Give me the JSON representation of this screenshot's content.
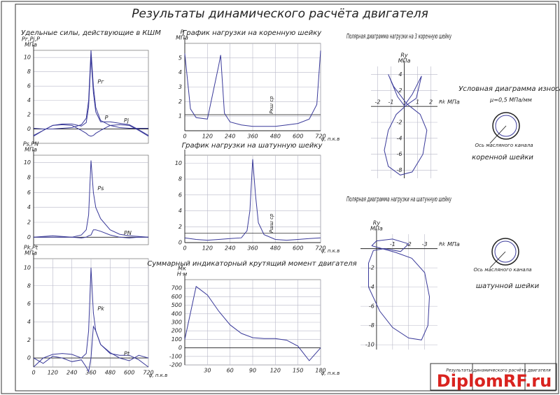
{
  "title": "Результаты динамического расчёта двигателя",
  "chart_data": [
    {
      "type": "line",
      "title": "Удельные силы, действующие в КШМ",
      "ylabel": "Pг,Pj,P",
      "yunit": "МПа",
      "grid": true,
      "x": [
        0,
        60,
        120,
        180,
        240,
        300,
        330,
        345,
        360,
        375,
        390,
        420,
        480,
        540,
        600,
        660,
        720
      ],
      "xlim": [
        0,
        720
      ],
      "xticks": [],
      "ylim": [
        -2,
        11
      ],
      "yticks": [
        0,
        2,
        4,
        6,
        8,
        10
      ],
      "series": [
        {
          "name": "Pг",
          "color": "#3a3a9a",
          "values": [
            0.1,
            0,
            0,
            0.1,
            0.2,
            0.6,
            1.5,
            4,
            11,
            6,
            3,
            1.2,
            0.5,
            0.2,
            0.1,
            0.1,
            0.1
          ]
        },
        {
          "name": "Pj",
          "color": "#3a3a9a",
          "values": [
            -1,
            -0.2,
            0.5,
            0.6,
            0.5,
            -0.2,
            -0.6,
            -0.9,
            -1,
            -0.9,
            -0.6,
            -0.2,
            0.5,
            0.6,
            0.5,
            -0.2,
            -1
          ]
        },
        {
          "name": "P",
          "color": "#3a3a9a",
          "values": [
            -0.9,
            -0.2,
            0.5,
            0.7,
            0.7,
            0.4,
            0.9,
            3.1,
            10,
            5.1,
            2.4,
            1,
            1,
            0.8,
            0.6,
            -0.1,
            -0.9
          ]
        }
      ]
    },
    {
      "type": "line",
      "ylabel": "Ps,PN",
      "yunit": "МПа",
      "grid": true,
      "x": [
        0,
        60,
        120,
        180,
        240,
        300,
        330,
        345,
        360,
        375,
        390,
        420,
        480,
        540,
        600,
        660,
        720
      ],
      "xlim": [
        0,
        720
      ],
      "xticks": [],
      "ylim": [
        -1,
        11
      ],
      "yticks": [
        0,
        2,
        4,
        6,
        8,
        10
      ],
      "series": [
        {
          "name": "Ps",
          "color": "#3a3a9a",
          "values": [
            0,
            0,
            0,
            0,
            0,
            0.3,
            1,
            3,
            10.3,
            6,
            4,
            2.5,
            1,
            0.4,
            0.2,
            0.1,
            0
          ]
        },
        {
          "name": "PN",
          "color": "#3a3a9a",
          "values": [
            0,
            0.1,
            0.2,
            0.1,
            0,
            -0.1,
            0,
            0.2,
            0.3,
            1,
            1,
            0.8,
            0.3,
            0,
            -0.1,
            0,
            0
          ]
        }
      ]
    },
    {
      "type": "line",
      "ylabel": "Pk,Pt",
      "yunit": "МПа",
      "xlabel": "φ, п.к.в",
      "grid": true,
      "x": [
        0,
        60,
        120,
        180,
        240,
        300,
        330,
        345,
        360,
        375,
        390,
        420,
        480,
        540,
        600,
        660,
        720
      ],
      "xlim": [
        0,
        720
      ],
      "xticks": [
        0,
        120,
        240,
        360,
        480,
        600,
        720
      ],
      "ylim": [
        -1,
        11
      ],
      "yticks": [
        0,
        2,
        4,
        6,
        8,
        10
      ],
      "series": [
        {
          "name": "Pk",
          "color": "#3a3a9a",
          "values": [
            -1,
            0,
            0.4,
            0.5,
            0.4,
            0,
            0.5,
            3,
            10,
            5,
            3,
            1.5,
            0.5,
            0.3,
            0.3,
            -0.2,
            -1
          ]
        },
        {
          "name": "Pt",
          "color": "#3a3a9a",
          "values": [
            0,
            -0.6,
            0.2,
            0,
            -0.4,
            -0.2,
            -1,
            -1.5,
            0,
            3.5,
            3,
            1.5,
            0.6,
            0,
            -0.3,
            0.3,
            0
          ]
        }
      ]
    },
    {
      "type": "line",
      "title": "График нагрузки на коренную шейку",
      "ylabel": "P",
      "yunit": "МПа",
      "xlabel": "φ, п.к.в",
      "grid": true,
      "x": [
        0,
        30,
        60,
        120,
        180,
        190,
        210,
        240,
        300,
        360,
        420,
        480,
        540,
        600,
        660,
        700,
        720
      ],
      "xlim": [
        0,
        720
      ],
      "xticks": [
        0,
        120,
        240,
        360,
        480,
        600,
        720
      ],
      "ylim": [
        0,
        6
      ],
      "yticks": [
        1,
        2,
        3,
        4,
        5
      ],
      "mean": 1.1,
      "mean_label": "Pкш ср",
      "series": [
        {
          "name": "Rкш",
          "color": "#3a3a9a",
          "values": [
            5.3,
            1.5,
            0.9,
            0.8,
            4.5,
            5.2,
            1.2,
            0.6,
            0.4,
            0.3,
            0.3,
            0.3,
            0.4,
            0.5,
            0.8,
            1.8,
            5.5
          ]
        }
      ]
    },
    {
      "type": "line",
      "title": "График нагрузки на шатунную шейку",
      "xlabel": "φ, п.к.в",
      "grid": true,
      "x": [
        0,
        60,
        120,
        180,
        240,
        300,
        330,
        345,
        360,
        375,
        390,
        420,
        480,
        540,
        600,
        660,
        720
      ],
      "xlim": [
        0,
        720
      ],
      "xticks": [
        0,
        120,
        240,
        360,
        480,
        600,
        720
      ],
      "ylim": [
        0,
        11
      ],
      "yticks": [
        0,
        2,
        4,
        6,
        8,
        10
      ],
      "mean": 1.2,
      "mean_label": "Pшш ср",
      "series": [
        {
          "name": "Rшш",
          "color": "#3a3a9a",
          "values": [
            0.6,
            0.4,
            0.3,
            0.4,
            0.5,
            0.6,
            1.5,
            4,
            10.5,
            6,
            2.5,
            1,
            0.4,
            0.3,
            0.4,
            0.5,
            0.6
          ]
        }
      ]
    },
    {
      "type": "line",
      "title": "Суммарный индикаторный крутящий момент двигателя",
      "ylabel": "Мк",
      "yunit": "Н·м",
      "xlabel": "φ, п.к.в",
      "grid": true,
      "x": [
        0,
        15,
        30,
        45,
        60,
        75,
        90,
        105,
        120,
        135,
        150,
        165,
        180
      ],
      "xlim": [
        0,
        180
      ],
      "xticks": [
        30,
        60,
        90,
        120,
        150,
        180
      ],
      "ylim": [
        -200,
        800
      ],
      "yticks": [
        -200,
        -100,
        0,
        100,
        200,
        300,
        400,
        500,
        600,
        700
      ],
      "series": [
        {
          "name": "Мк",
          "color": "#3a3a9a",
          "values": [
            100,
            720,
            620,
            430,
            270,
            170,
            120,
            110,
            110,
            90,
            20,
            -150,
            0
          ]
        }
      ]
    },
    {
      "type": "polar",
      "title": "Полярная диаграмма нагрузки на 3 коренную шейку",
      "xlabel": "Rk",
      "xunit": "МПа",
      "ylabel": "Ry",
      "yunit": "МПа",
      "grid": true,
      "xlim": [
        -2.5,
        2.5
      ],
      "xticks": [
        -2,
        -1,
        1,
        2
      ],
      "ylim": [
        -9,
        5
      ],
      "yticks": [
        -8,
        -6,
        -4,
        -2,
        2,
        4
      ],
      "series": [
        {
          "name": "Rкш",
          "color": "#3a3a9a",
          "x": [
            0.2,
            -0.8,
            -1.2,
            -0.5,
            0,
            0.6,
            1.3,
            0.9,
            0.2,
            -0.6,
            -1.2,
            -1.5,
            -1.2,
            -0.3,
            0.6,
            1.4,
            1.7,
            1.2,
            0.2
          ],
          "values": [
            0.3,
            2.5,
            4.0,
            1.2,
            0.1,
            1.5,
            3.8,
            1.0,
            0.2,
            -1.0,
            -3.0,
            -5.5,
            -7.5,
            -8.6,
            -8.2,
            -6.0,
            -3.0,
            -1.0,
            0.3
          ]
        }
      ]
    },
    {
      "type": "polar",
      "title": "Полярная диаграмма нагрузки на шатунную шейку",
      "xlabel": "Rk",
      "xunit": "МПа",
      "ylabel": "Ry",
      "yunit": "МПа",
      "grid": true,
      "xlim": [
        1,
        -3.8
      ],
      "xticks": [
        -1,
        -2,
        -3
      ],
      "ylim": [
        -10.5,
        1.5
      ],
      "yticks": [
        -2,
        -4,
        -6,
        -8,
        -10
      ],
      "series": [
        {
          "name": "Rшш",
          "color": "#3a3a9a",
          "x": [
            0.3,
            0,
            -1,
            -2,
            -1.5,
            -0.5,
            0.2,
            0.5,
            0.5,
            -0.2,
            -1,
            -2,
            -2.8,
            -3.2,
            -3.3,
            -3,
            -2.2,
            -1.2,
            0.3
          ],
          "values": [
            0.3,
            0.8,
            1,
            0.5,
            -0.3,
            0,
            -0.2,
            -1.5,
            -4,
            -6.5,
            -8.2,
            -9.3,
            -9.5,
            -8,
            -5,
            -2.5,
            -1,
            -0.4,
            0.3
          ]
        }
      ]
    }
  ],
  "wear_diagram": {
    "title": "Условная диаграмма износа",
    "scale": "μ=0,5 МПа/мм",
    "items": [
      {
        "axis_label": "Ось масляного канала",
        "caption": "коренной шейки"
      },
      {
        "axis_label": "Ось масляного канала",
        "caption": "шатунной шейки"
      }
    ]
  },
  "title_block": {
    "name": "Результаты динамического расчёта двигателя"
  },
  "watermark": "DiplomRF.ru"
}
